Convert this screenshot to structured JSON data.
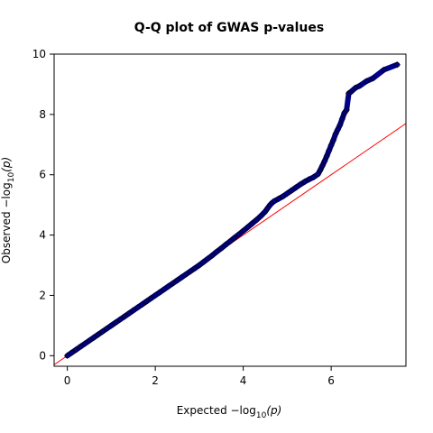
{
  "chart_data": {
    "type": "scatter",
    "title": "Q-Q plot of GWAS p-values",
    "xlabel": {
      "prefix": "Expected  −log",
      "sub": "10",
      "suffix": "(p)"
    },
    "ylabel": {
      "prefix": "Observed  −log",
      "sub": "10",
      "suffix": "(p)"
    },
    "xlim": [
      -0.3,
      7.7
    ],
    "ylim": [
      -0.35,
      10
    ],
    "x_ticks": [
      0,
      2,
      4,
      6
    ],
    "y_ticks": [
      0,
      2,
      4,
      6,
      8,
      10
    ],
    "x_tick_labels": [
      "0",
      "2",
      "4",
      "6"
    ],
    "y_tick_labels": [
      "0",
      "2",
      "4",
      "6",
      "8",
      "10"
    ],
    "reference_line": {
      "slope": 1,
      "intercept": 0,
      "color": "#ff0000"
    },
    "marker": {
      "shape": "diamond",
      "fill": "#00008b",
      "edge": "#000000"
    },
    "grid": false,
    "series": [
      {
        "points": [
          [
            0.0,
            0.0
          ],
          [
            0.1,
            0.1
          ],
          [
            0.2,
            0.2
          ],
          [
            0.3,
            0.3
          ],
          [
            0.4,
            0.4
          ],
          [
            0.5,
            0.5
          ],
          [
            0.6,
            0.6
          ],
          [
            0.7,
            0.7
          ],
          [
            0.8,
            0.8
          ],
          [
            0.9,
            0.9
          ],
          [
            1.0,
            1.0
          ],
          [
            1.1,
            1.1
          ],
          [
            1.2,
            1.2
          ],
          [
            1.3,
            1.3
          ],
          [
            1.4,
            1.4
          ],
          [
            1.5,
            1.5
          ],
          [
            1.6,
            1.6
          ],
          [
            1.7,
            1.7
          ],
          [
            1.8,
            1.8
          ],
          [
            1.9,
            1.9
          ],
          [
            2.0,
            2.0
          ],
          [
            2.1,
            2.1
          ],
          [
            2.2,
            2.2
          ],
          [
            2.3,
            2.3
          ],
          [
            2.4,
            2.4
          ],
          [
            2.5,
            2.5
          ],
          [
            2.6,
            2.6
          ],
          [
            2.7,
            2.7
          ],
          [
            2.8,
            2.8
          ],
          [
            2.9,
            2.9
          ],
          [
            3.0,
            3.0
          ],
          [
            3.1,
            3.11
          ],
          [
            3.2,
            3.22
          ],
          [
            3.3,
            3.33
          ],
          [
            3.4,
            3.45
          ],
          [
            3.5,
            3.56
          ],
          [
            3.6,
            3.68
          ],
          [
            3.7,
            3.79
          ],
          [
            3.8,
            3.91
          ],
          [
            3.9,
            4.02
          ],
          [
            4.0,
            4.14
          ],
          [
            4.1,
            4.26
          ],
          [
            4.2,
            4.38
          ],
          [
            4.3,
            4.5
          ],
          [
            4.4,
            4.63
          ],
          [
            4.5,
            4.78
          ],
          [
            4.55,
            4.88
          ],
          [
            4.6,
            4.98
          ],
          [
            4.65,
            5.06
          ],
          [
            4.7,
            5.12
          ],
          [
            4.8,
            5.2
          ],
          [
            4.9,
            5.28
          ],
          [
            5.0,
            5.38
          ],
          [
            5.1,
            5.48
          ],
          [
            5.2,
            5.58
          ],
          [
            5.3,
            5.68
          ],
          [
            5.4,
            5.77
          ],
          [
            5.5,
            5.85
          ],
          [
            5.6,
            5.92
          ],
          [
            5.7,
            6.02
          ],
          [
            5.75,
            6.15
          ],
          [
            5.8,
            6.3
          ],
          [
            5.85,
            6.45
          ],
          [
            5.9,
            6.62
          ],
          [
            5.95,
            6.8
          ],
          [
            6.0,
            6.98
          ],
          [
            6.05,
            7.15
          ],
          [
            6.1,
            7.35
          ],
          [
            6.15,
            7.5
          ],
          [
            6.2,
            7.65
          ],
          [
            6.25,
            7.85
          ],
          [
            6.3,
            8.05
          ],
          [
            6.35,
            8.15
          ],
          [
            6.4,
            8.7
          ],
          [
            6.45,
            8.75
          ],
          [
            6.55,
            8.88
          ],
          [
            6.65,
            8.95
          ],
          [
            6.8,
            9.1
          ],
          [
            6.95,
            9.2
          ],
          [
            7.2,
            9.48
          ],
          [
            7.5,
            9.65
          ]
        ]
      }
    ]
  }
}
